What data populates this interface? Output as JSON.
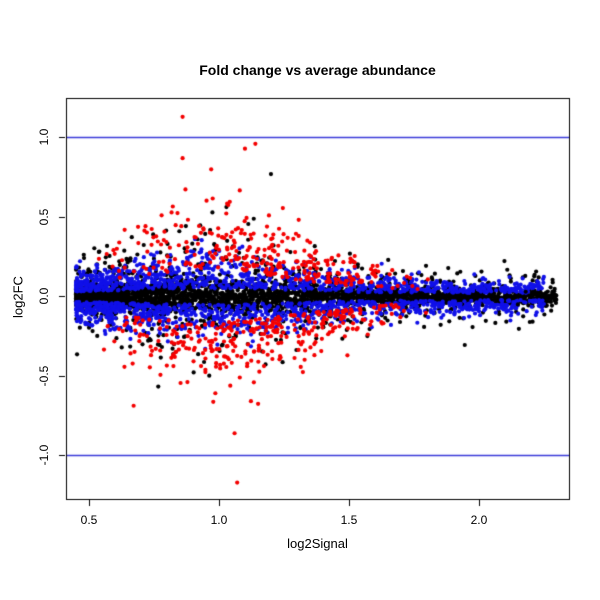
{
  "chart_data": {
    "type": "scatter",
    "title": "Fold change vs average abundance",
    "xlabel": "log2Signal",
    "ylabel": "log2FC",
    "xlim": [
      0.4115,
      2.3465
    ],
    "ylim": [
      -1.2736,
      1.2484
    ],
    "x_ticks": [
      0.5,
      1.0,
      1.5,
      2.0
    ],
    "x_tick_labels": [
      "0.5",
      "1.0",
      "1.5",
      "2.0"
    ],
    "y_ticks": [
      -1.0,
      -0.5,
      0.0,
      0.5,
      1.0
    ],
    "y_tick_labels": [
      "-1.0",
      "-0.5",
      "0.0",
      "0.5",
      "1.0"
    ],
    "grid": false,
    "legend": "none",
    "background": "#ffffff",
    "box_color": "#000000",
    "point_radius_px": 2.1,
    "hlines": [
      {
        "y": 1.0,
        "color": "#3b3bd9",
        "width": 1.3
      },
      {
        "y": -1.0,
        "color": "#3b3bd9",
        "width": 1.3
      }
    ],
    "colors": {
      "nonsignificant": "#000000",
      "moderate": "#1010e8",
      "significant": "#f40000"
    },
    "description": "MA-plot style scatter of ~5600 probes: dense black core near log2FC=0, blue band of moderate fold-changes around it, red points with larger fold-changes forming a funnel that is widest near log2Signal=0.95 and narrows toward high abundance; blue reference lines at log2FC = +1 and -1.",
    "generation": {
      "seed": 1337,
      "funnel": {
        "center": 0.95,
        "sigma": 0.32
      },
      "x_clamp_max": 2.32,
      "y_clamp_abs": 1.2,
      "series": [
        {
          "name": "black-core",
          "color": "#000000",
          "n": 2300,
          "x": {
            "min": 0.45,
            "span": 1.85,
            "pow": 1.55,
            "tri": false
          },
          "y": {
            "kind": "normal",
            "sd": 0.055,
            "offset": 0,
            "w_base": 0.35,
            "w_amp": 0.65
          }
        },
        {
          "name": "black-scatter",
          "color": "#000000",
          "n": 850,
          "x": {
            "min": 0.45,
            "span": 1.85,
            "pow": 1.25,
            "tri": false
          },
          "y": {
            "kind": "normal",
            "sd": 0.21,
            "offset": 0,
            "w_base": 0.4,
            "w_amp": 0.6
          }
        },
        {
          "name": "blue-moderate",
          "color": "#1010e8",
          "n": 1850,
          "x": {
            "min": 0.45,
            "span": 1.8,
            "pow": 1.45,
            "tri": false
          },
          "y": {
            "kind": "band",
            "sd": 0.105,
            "offset": 0.05,
            "w_base": 0.45,
            "w_amp": 0.55
          }
        },
        {
          "name": "red-significant",
          "color": "#f40000",
          "n": 640,
          "x": {
            "min": 0.48,
            "span": 1.35,
            "pow": 1.0,
            "tri": true
          },
          "y": {
            "kind": "band",
            "sd": 0.23,
            "offset": 0.16,
            "w_base": 0.25,
            "w_amp": 0.75
          }
        }
      ],
      "outliers": [
        {
          "x": 0.86,
          "y": 1.13,
          "color": "#f40000"
        },
        {
          "x": 0.86,
          "y": 0.87,
          "color": "#f40000"
        },
        {
          "x": 1.1,
          "y": 0.93,
          "color": "#f40000"
        },
        {
          "x": 1.14,
          "y": 0.96,
          "color": "#f40000"
        },
        {
          "x": 1.2,
          "y": 0.77,
          "color": "#000000"
        },
        {
          "x": 0.97,
          "y": 0.8,
          "color": "#f40000"
        },
        {
          "x": 1.06,
          "y": -0.86,
          "color": "#f40000"
        },
        {
          "x": 1.07,
          "y": -1.17,
          "color": "#f40000"
        },
        {
          "x": 2.27,
          "y": -0.01,
          "color": "#000000"
        },
        {
          "x": 2.18,
          "y": 0.03,
          "color": "#000000"
        },
        {
          "x": 2.15,
          "y": -0.05,
          "color": "#000000"
        }
      ]
    }
  }
}
